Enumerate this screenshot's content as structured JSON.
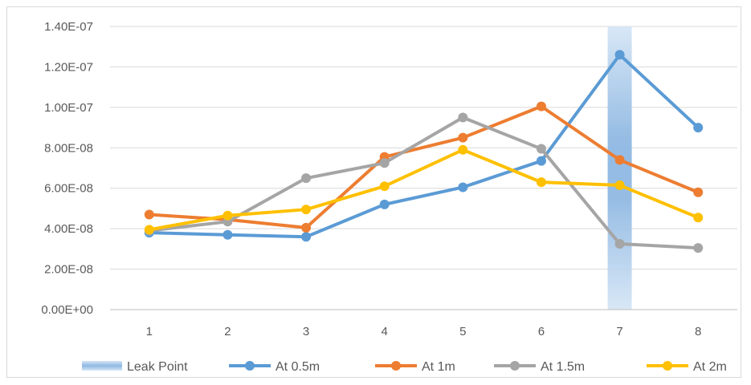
{
  "chart_data": {
    "type": "line",
    "title": "",
    "xlabel": "",
    "ylabel": "",
    "categories": [
      "1",
      "2",
      "3",
      "4",
      "5",
      "6",
      "7",
      "8"
    ],
    "y_ticks": [
      "0.00E+00",
      "2.00E-08",
      "4.00E-08",
      "6.00E-08",
      "8.00E-08",
      "1.00E-07",
      "1.20E-07",
      "1.40E-07"
    ],
    "ylim": [
      0,
      1.4e-07
    ],
    "grid": true,
    "legend_position": "bottom",
    "highlight": {
      "name": "Leak Point",
      "category": "7",
      "color": "#9dc3e6"
    },
    "series": [
      {
        "name": "At 0.5m",
        "color": "#5b9bd5",
        "values": [
          3.8e-08,
          3.7e-08,
          3.6e-08,
          5.2e-08,
          6.05e-08,
          7.35e-08,
          1.26e-07,
          9e-08
        ]
      },
      {
        "name": "At 1m",
        "color": "#ed7d31",
        "values": [
          4.7e-08,
          4.45e-08,
          4.05e-08,
          7.55e-08,
          8.5e-08,
          1.005e-07,
          7.4e-08,
          5.8e-08
        ]
      },
      {
        "name": "At 1.5m",
        "color": "#a5a5a5",
        "values": [
          3.9e-08,
          4.35e-08,
          6.5e-08,
          7.25e-08,
          9.5e-08,
          7.95e-08,
          3.25e-08,
          3.05e-08
        ]
      },
      {
        "name": "At 2m",
        "color": "#ffc000",
        "values": [
          3.95e-08,
          4.65e-08,
          4.95e-08,
          6.1e-08,
          7.9e-08,
          6.3e-08,
          6.15e-08,
          4.55e-08
        ]
      }
    ]
  }
}
